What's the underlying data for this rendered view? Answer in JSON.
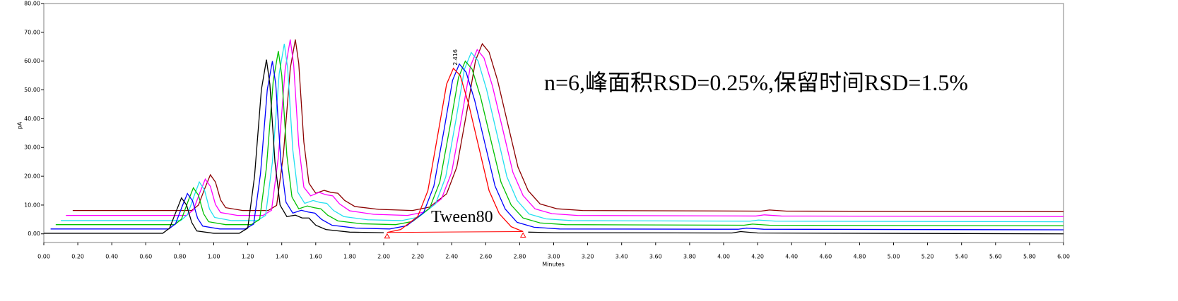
{
  "chart_data": {
    "type": "line",
    "ylabel": "pA",
    "xlabel": "Minutes",
    "xlim": [
      0,
      6
    ],
    "ylim": [
      -3,
      80
    ],
    "yticks": [
      {
        "value": 0,
        "label": "0.00"
      },
      {
        "value": 10,
        "label": "10.00"
      },
      {
        "value": 20,
        "label": "20.00"
      },
      {
        "value": 30,
        "label": "30.00"
      },
      {
        "value": 40,
        "label": "40.00"
      },
      {
        "value": 50,
        "label": "50.00"
      },
      {
        "value": 60,
        "label": "60.00"
      },
      {
        "value": 70,
        "label": "70.00"
      },
      {
        "value": 80,
        "label": "80.00"
      }
    ],
    "xticks": [
      {
        "value": 0,
        "label": "0.00"
      },
      {
        "value": 0.2,
        "label": "0.20"
      },
      {
        "value": 0.4,
        "label": "0.40"
      },
      {
        "value": 0.6,
        "label": "0.60"
      },
      {
        "value": 0.8,
        "label": "0.80"
      },
      {
        "value": 1,
        "label": "1.00"
      },
      {
        "value": 1.2,
        "label": "1.20"
      },
      {
        "value": 1.4,
        "label": "1.40"
      },
      {
        "value": 1.6,
        "label": "1.60"
      },
      {
        "value": 1.8,
        "label": "1.80"
      },
      {
        "value": 2,
        "label": "2.00"
      },
      {
        "value": 2.2,
        "label": "2.20"
      },
      {
        "value": 2.4,
        "label": "2.40"
      },
      {
        "value": 2.6,
        "label": "2.60"
      },
      {
        "value": 2.8,
        "label": "2.80"
      },
      {
        "value": 3,
        "label": "3.00"
      },
      {
        "value": 3.2,
        "label": "3.20"
      },
      {
        "value": 3.4,
        "label": "3.40"
      },
      {
        "value": 3.6,
        "label": "3.60"
      },
      {
        "value": 3.8,
        "label": "3.80"
      },
      {
        "value": 4,
        "label": "4.00"
      },
      {
        "value": 4.2,
        "label": "4.20"
      },
      {
        "value": 4.4,
        "label": "4.40"
      },
      {
        "value": 4.6,
        "label": "4.60"
      },
      {
        "value": 4.8,
        "label": "4.80"
      },
      {
        "value": 5,
        "label": "5.00"
      },
      {
        "value": 5.2,
        "label": "5.20"
      },
      {
        "value": 5.4,
        "label": "5.40"
      },
      {
        "value": 5.6,
        "label": "5.60"
      },
      {
        "value": 5.8,
        "label": "5.80"
      },
      {
        "value": 6,
        "label": "6.00"
      }
    ],
    "series": [
      {
        "color": "#8b0000",
        "x": [
          0.17,
          0.87,
          0.91,
          0.95,
          0.98,
          1.01,
          1.04,
          1.07,
          1.17,
          1.32,
          1.37,
          1.41,
          1.45,
          1.48,
          1.5,
          1.53,
          1.56,
          1.6,
          1.65,
          1.69,
          1.73,
          1.77,
          1.83,
          1.97,
          2.17,
          2.27,
          2.37,
          2.43,
          2.49,
          2.54,
          2.58,
          2.62,
          2.67,
          2.73,
          2.79,
          2.85,
          2.92,
          3.02,
          3.17,
          4.22,
          4.27,
          4.37,
          6.0
        ],
        "values": [
          8.1,
          8.1,
          10,
          16.2,
          20.5,
          18,
          11.8,
          9.1,
          8.1,
          8.1,
          9.9,
          27.7,
          57.4,
          67.5,
          59.2,
          31.9,
          17.6,
          14.1,
          15.1,
          14.4,
          14.1,
          11.6,
          9.5,
          8.5,
          8.1,
          9.3,
          13.9,
          23.2,
          42.8,
          60.2,
          66,
          63.1,
          53.3,
          38.2,
          23.2,
          15,
          10.4,
          8.7,
          8.1,
          7.9,
          8.3,
          7.9,
          7.7
        ]
      },
      {
        "color": "#ff00ff",
        "x": [
          0.13,
          0.84,
          0.88,
          0.92,
          0.95,
          0.98,
          1.01,
          1.04,
          1.14,
          1.29,
          1.34,
          1.38,
          1.42,
          1.45,
          1.47,
          1.5,
          1.53,
          1.57,
          1.62,
          1.66,
          1.7,
          1.74,
          1.8,
          1.94,
          2.14,
          2.24,
          2.34,
          2.4,
          2.46,
          2.51,
          2.55,
          2.59,
          2.64,
          2.7,
          2.76,
          2.82,
          2.89,
          2.99,
          3.14,
          4.19,
          4.24,
          4.34,
          6.0
        ],
        "values": [
          6.4,
          6.4,
          8.3,
          14.6,
          19,
          16.5,
          10.2,
          7.4,
          6.4,
          6.4,
          8.2,
          26.6,
          57.1,
          67.5,
          58.9,
          30.8,
          16.2,
          13.2,
          14.4,
          13.6,
          13.2,
          10.4,
          8,
          6.8,
          6.4,
          7.6,
          12.2,
          21.4,
          41,
          58.2,
          64,
          61.1,
          51.3,
          36.4,
          21.4,
          13.3,
          8.7,
          7,
          6.4,
          6.2,
          6.6,
          6.2,
          6.0
        ]
      },
      {
        "color": "#22e0f0",
        "x": [
          0.1,
          0.805,
          0.845,
          0.885,
          0.915,
          0.945,
          0.975,
          1.005,
          1.105,
          1.255,
          1.305,
          1.345,
          1.385,
          1.415,
          1.435,
          1.465,
          1.495,
          1.535,
          1.585,
          1.625,
          1.665,
          1.705,
          1.765,
          1.905,
          2.105,
          2.205,
          2.305,
          2.365,
          2.425,
          2.475,
          2.515,
          2.555,
          2.605,
          2.665,
          2.725,
          2.785,
          2.855,
          2.955,
          3.105,
          4.155,
          4.205,
          4.305,
          6.0
        ],
        "values": [
          4.6,
          4.6,
          6.6,
          13.3,
          18,
          15.3,
          8.6,
          5.7,
          4.6,
          4.6,
          6.4,
          24.9,
          55.6,
          66,
          57.4,
          29.2,
          14.4,
          10.6,
          11.6,
          10.9,
          10.6,
          8.1,
          6,
          4.9,
          4.6,
          5.8,
          10.4,
          19.8,
          39.6,
          57.2,
          63,
          60.1,
          50.2,
          35,
          19.8,
          11.6,
          6.9,
          5.2,
          4.6,
          4.4,
          4.8,
          4.4,
          4.2
        ]
      },
      {
        "color": "#00c000",
        "x": [
          0.07,
          0.77,
          0.81,
          0.85,
          0.88,
          0.91,
          0.94,
          0.97,
          1.07,
          1.22,
          1.27,
          1.31,
          1.35,
          1.38,
          1.4,
          1.43,
          1.46,
          1.5,
          1.55,
          1.59,
          1.63,
          1.67,
          1.73,
          1.87,
          2.07,
          2.17,
          2.27,
          2.33,
          2.39,
          2.44,
          2.48,
          2.52,
          2.57,
          2.63,
          2.69,
          2.75,
          2.82,
          2.92,
          3.07,
          4.12,
          4.17,
          4.27,
          6.0
        ],
        "values": [
          3.2,
          3.2,
          5.1,
          11.5,
          16,
          13.4,
          7,
          4.2,
          3.2,
          3.2,
          5,
          23.1,
          53.2,
          63.5,
          55.1,
          27.3,
          12.8,
          8.7,
          9.7,
          9.1,
          8.7,
          6.5,
          4.5,
          3.5,
          3.2,
          4.3,
          8.9,
          18,
          37.3,
          54.3,
          60,
          57.2,
          47.5,
          32.7,
          18,
          10,
          5.5,
          3.8,
          3.2,
          3.0,
          3.4,
          3.0,
          2.8
        ]
      },
      {
        "color": "#0000ff",
        "x": [
          0.04,
          0.735,
          0.775,
          0.815,
          0.845,
          0.875,
          0.905,
          0.935,
          1.035,
          1.185,
          1.235,
          1.275,
          1.315,
          1.345,
          1.365,
          1.395,
          1.425,
          1.465,
          1.515,
          1.555,
          1.595,
          1.635,
          1.695,
          1.835,
          2.035,
          2.135,
          2.235,
          2.295,
          2.355,
          2.405,
          2.445,
          2.485,
          2.535,
          2.595,
          2.655,
          2.715,
          2.785,
          2.885,
          3.035,
          4.085,
          4.135,
          4.235,
          6.0
        ],
        "values": [
          1.7,
          1.7,
          3.5,
          9.7,
          14,
          11.5,
          5.4,
          2.7,
          1.7,
          1.7,
          3.4,
          20.9,
          50.1,
          60,
          51.8,
          25,
          11,
          7.2,
          8.2,
          7.6,
          7.2,
          5,
          3,
          2.0,
          1.7,
          2.8,
          7.4,
          16.6,
          36.1,
          53.3,
          59,
          56.1,
          46.4,
          31.5,
          16.6,
          8.6,
          4,
          2.3,
          1.7,
          1.6,
          2.0,
          1.6,
          1.4
        ]
      },
      {
        "color": "#000000",
        "x": [
          0.0,
          0.7,
          0.74,
          0.78,
          0.81,
          0.84,
          0.87,
          0.9,
          1.0,
          1.15,
          1.2,
          1.24,
          1.28,
          1.31,
          1.33,
          1.36,
          1.39,
          1.43,
          1.48,
          1.52,
          1.56,
          1.6,
          1.66,
          1.8,
          2.0,
          2.1,
          2.2,
          2.26,
          2.32,
          2.37,
          2.41,
          2.45,
          2.5,
          2.56,
          2.62,
          2.68,
          2.75,
          2.85,
          3.0,
          4.05,
          4.1,
          4.2,
          6.0
        ],
        "values": [
          0.2,
          0.2,
          2,
          8,
          12.5,
          10,
          4,
          1,
          0.2,
          0.2,
          2,
          20,
          50,
          60.5,
          52,
          25,
          10,
          6,
          6.5,
          5.5,
          5.5,
          3,
          1.5,
          0.6,
          0.4,
          null,
          null,
          null,
          null,
          null,
          null,
          null,
          null,
          null,
          null,
          null,
          null,
          0.6,
          0.4,
          0.3,
          0.8,
          0.3,
          0.0
        ]
      },
      {
        "color": "#ff0000",
        "x": [
          2.02,
          2.1,
          2.2,
          2.26,
          2.32,
          2.37,
          2.41,
          2.45,
          2.5,
          2.56,
          2.62,
          2.68,
          2.75,
          2.82
        ],
        "values": [
          0.5,
          1.5,
          6,
          15,
          35,
          52,
          57.5,
          55,
          45,
          30,
          15,
          7,
          2.5,
          0.8
        ]
      }
    ],
    "peak_label": "2.416",
    "peak_name": "Tween80",
    "note": "n=6,峰面积RSD=0.25%,保留时间RSD=1.5%"
  }
}
